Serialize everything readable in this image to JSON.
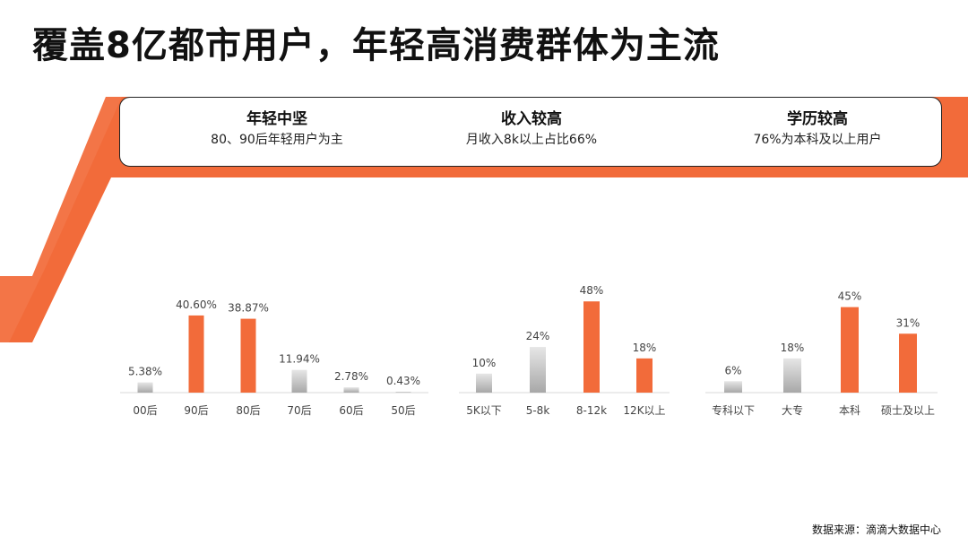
{
  "title": "覆盖8亿都市用户，年轻高消费群体为主流",
  "colors": {
    "accent": "#F26B3A",
    "neutral_top": "#E6E6E6",
    "neutral_bottom": "#A8A8A8"
  },
  "info": [
    {
      "title": "年轻中坚",
      "desc": "80、90后年轻用户为主"
    },
    {
      "title": "收入较高",
      "desc": "月收入8k以上占比66%"
    },
    {
      "title": "学历较高",
      "desc": "76%为本科及以上用户"
    }
  ],
  "chart_data": [
    {
      "type": "bar",
      "categories": [
        "00后",
        "90后",
        "80后",
        "70后",
        "60后",
        "50后"
      ],
      "values": [
        5.38,
        40.6,
        38.87,
        11.94,
        2.78,
        0.43
      ],
      "value_labels": [
        "5.38%",
        "40.60%",
        "38.87%",
        "11.94%",
        "2.78%",
        "0.43%"
      ],
      "highlight": [
        false,
        true,
        true,
        false,
        false,
        false
      ],
      "ylim": [
        0,
        100
      ]
    },
    {
      "type": "bar",
      "categories": [
        "5K以下",
        "5-8k",
        "8-12k",
        "12K以上"
      ],
      "values": [
        10,
        24,
        48,
        18
      ],
      "value_labels": [
        "10%",
        "24%",
        "48%",
        "18%"
      ],
      "highlight": [
        false,
        false,
        true,
        true
      ],
      "ylim": [
        0,
        100
      ]
    },
    {
      "type": "bar",
      "categories": [
        "专科以下",
        "大专",
        "本科",
        "硕士及以上"
      ],
      "values": [
        6,
        18,
        45,
        31
      ],
      "value_labels": [
        "6%",
        "18%",
        "45%",
        "31%"
      ],
      "highlight": [
        false,
        false,
        true,
        true
      ],
      "ylim": [
        0,
        100
      ]
    }
  ],
  "source": "数据来源：滴滴大数据中心"
}
